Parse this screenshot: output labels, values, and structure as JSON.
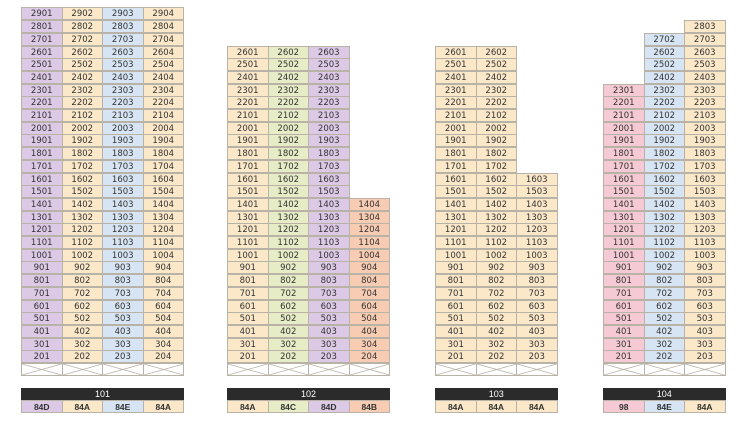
{
  "colors": {
    "84A": "#fbe8c8",
    "84B": "#f7ccb2",
    "84C": "#e5ecc6",
    "84D": "#dcc9e6",
    "84E": "#d6e4f3",
    "98": "#f6cad4"
  },
  "buildings": [
    {
      "label": "101",
      "col_types": [
        "84D",
        "84A",
        "84E",
        "84A"
      ],
      "units": [
        [
          "2901",
          "2902",
          "2903",
          "2904"
        ],
        [
          "2801",
          "2802",
          "2803",
          "2804"
        ],
        [
          "2701",
          "2702",
          "2703",
          "2704"
        ],
        [
          "2601",
          "2602",
          "2603",
          "2604"
        ],
        [
          "2501",
          "2502",
          "2503",
          "2504"
        ],
        [
          "2401",
          "2402",
          "2403",
          "2404"
        ],
        [
          "2301",
          "2302",
          "2303",
          "2304"
        ],
        [
          "2201",
          "2202",
          "2203",
          "2204"
        ],
        [
          "2101",
          "2102",
          "2103",
          "2104"
        ],
        [
          "2001",
          "2002",
          "2003",
          "2004"
        ],
        [
          "1901",
          "1902",
          "1903",
          "1904"
        ],
        [
          "1801",
          "1802",
          "1803",
          "1804"
        ],
        [
          "1701",
          "1702",
          "1703",
          "1704"
        ],
        [
          "1601",
          "1602",
          "1603",
          "1604"
        ],
        [
          "1501",
          "1502",
          "1503",
          "1504"
        ],
        [
          "1401",
          "1402",
          "1403",
          "1404"
        ],
        [
          "1301",
          "1302",
          "1303",
          "1304"
        ],
        [
          "1201",
          "1202",
          "1203",
          "1204"
        ],
        [
          "1101",
          "1102",
          "1103",
          "1104"
        ],
        [
          "1001",
          "1002",
          "1003",
          "1004"
        ],
        [
          "901",
          "902",
          "903",
          "904"
        ],
        [
          "801",
          "802",
          "803",
          "804"
        ],
        [
          "701",
          "702",
          "703",
          "704"
        ],
        [
          "601",
          "602",
          "603",
          "604"
        ],
        [
          "501",
          "502",
          "503",
          "504"
        ],
        [
          "401",
          "402",
          "403",
          "404"
        ],
        [
          "301",
          "302",
          "303",
          "304"
        ],
        [
          "201",
          "202",
          "203",
          "204"
        ]
      ]
    },
    {
      "label": "102",
      "col_types": [
        "84A",
        "84C",
        "84D",
        "84B"
      ],
      "units": [
        [
          "2601",
          "2602",
          "2603",
          ""
        ],
        [
          "2501",
          "2502",
          "2503",
          ""
        ],
        [
          "2401",
          "2402",
          "2403",
          ""
        ],
        [
          "2301",
          "2302",
          "2303",
          ""
        ],
        [
          "2201",
          "2202",
          "2203",
          ""
        ],
        [
          "2101",
          "2102",
          "2103",
          ""
        ],
        [
          "2001",
          "2002",
          "2003",
          ""
        ],
        [
          "1901",
          "1902",
          "1903",
          ""
        ],
        [
          "1801",
          "1802",
          "1803",
          ""
        ],
        [
          "1701",
          "1702",
          "1703",
          ""
        ],
        [
          "1601",
          "1602",
          "1603",
          ""
        ],
        [
          "1501",
          "1502",
          "1503",
          ""
        ],
        [
          "1401",
          "1402",
          "1403",
          "1404"
        ],
        [
          "1301",
          "1302",
          "1303",
          "1304"
        ],
        [
          "1201",
          "1202",
          "1203",
          "1204"
        ],
        [
          "1101",
          "1102",
          "1103",
          "1104"
        ],
        [
          "1001",
          "1002",
          "1003",
          "1004"
        ],
        [
          "901",
          "902",
          "903",
          "904"
        ],
        [
          "801",
          "802",
          "803",
          "804"
        ],
        [
          "701",
          "702",
          "703",
          "704"
        ],
        [
          "601",
          "602",
          "603",
          "604"
        ],
        [
          "501",
          "502",
          "503",
          "504"
        ],
        [
          "401",
          "402",
          "403",
          "404"
        ],
        [
          "301",
          "302",
          "303",
          "304"
        ],
        [
          "201",
          "202",
          "203",
          "204"
        ]
      ]
    },
    {
      "label": "103",
      "col_types": [
        "84A",
        "84A",
        "84A"
      ],
      "units": [
        [
          "2601",
          "2602",
          ""
        ],
        [
          "2501",
          "2502",
          ""
        ],
        [
          "2401",
          "2402",
          ""
        ],
        [
          "2301",
          "2302",
          ""
        ],
        [
          "2201",
          "2202",
          ""
        ],
        [
          "2101",
          "2102",
          ""
        ],
        [
          "2001",
          "2002",
          ""
        ],
        [
          "1901",
          "1902",
          ""
        ],
        [
          "1801",
          "1802",
          ""
        ],
        [
          "1701",
          "1702",
          ""
        ],
        [
          "1601",
          "1602",
          "1603"
        ],
        [
          "1501",
          "1502",
          "1503"
        ],
        [
          "1401",
          "1402",
          "1403"
        ],
        [
          "1301",
          "1302",
          "1303"
        ],
        [
          "1201",
          "1202",
          "1203"
        ],
        [
          "1101",
          "1102",
          "1103"
        ],
        [
          "1001",
          "1002",
          "1003"
        ],
        [
          "901",
          "902",
          "903"
        ],
        [
          "801",
          "802",
          "803"
        ],
        [
          "701",
          "702",
          "703"
        ],
        [
          "601",
          "602",
          "603"
        ],
        [
          "501",
          "502",
          "503"
        ],
        [
          "401",
          "402",
          "403"
        ],
        [
          "301",
          "302",
          "303"
        ],
        [
          "201",
          "202",
          "203"
        ]
      ]
    },
    {
      "label": "104",
      "col_types": [
        "98",
        "84E",
        "84A"
      ],
      "units": [
        [
          "",
          "",
          "2803"
        ],
        [
          "",
          "2702",
          "2703"
        ],
        [
          "",
          "2602",
          "2603"
        ],
        [
          "",
          "2502",
          "2503"
        ],
        [
          "",
          "2402",
          "2403"
        ],
        [
          "2301",
          "2302",
          "2303"
        ],
        [
          "2201",
          "2202",
          "2203"
        ],
        [
          "2101",
          "2102",
          "2103"
        ],
        [
          "2001",
          "2002",
          "2003"
        ],
        [
          "1901",
          "1902",
          "1903"
        ],
        [
          "1801",
          "1802",
          "1803"
        ],
        [
          "1701",
          "1702",
          "1703"
        ],
        [
          "1601",
          "1602",
          "1603"
        ],
        [
          "1501",
          "1502",
          "1503"
        ],
        [
          "1401",
          "1402",
          "1403"
        ],
        [
          "1301",
          "1302",
          "1303"
        ],
        [
          "1201",
          "1202",
          "1203"
        ],
        [
          "1101",
          "1102",
          "1103"
        ],
        [
          "1001",
          "1002",
          "1003"
        ],
        [
          "901",
          "902",
          "903"
        ],
        [
          "801",
          "802",
          "803"
        ],
        [
          "701",
          "702",
          "703"
        ],
        [
          "601",
          "602",
          "603"
        ],
        [
          "501",
          "502",
          "503"
        ],
        [
          "401",
          "402",
          "403"
        ],
        [
          "301",
          "302",
          "303"
        ],
        [
          "201",
          "202",
          "203"
        ]
      ]
    }
  ]
}
